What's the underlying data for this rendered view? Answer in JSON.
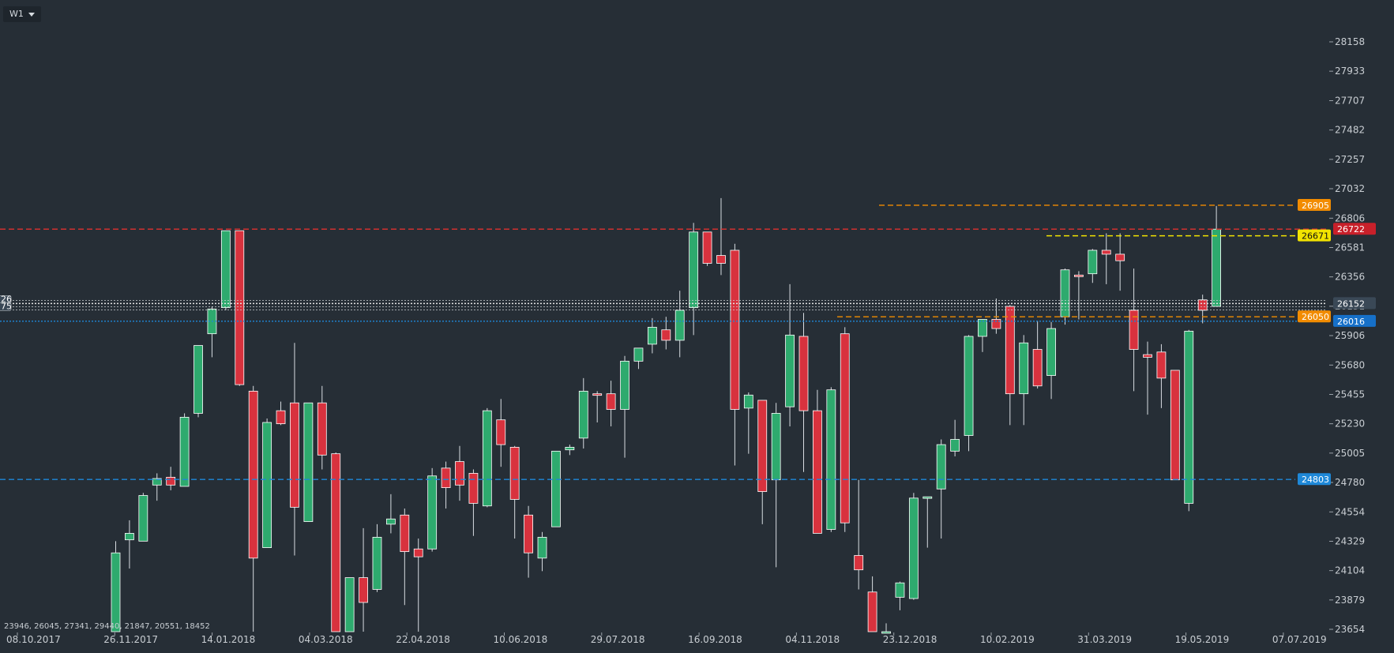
{
  "toolbar": {
    "timeframe": "W1"
  },
  "ohlc_readout": "23946, 26045, 27341, 29440, 21847, 20551, 18452",
  "colors": {
    "background": "#262e36",
    "bull": "#2eaa6e",
    "bear": "#d8323e",
    "axis_text": "#c9ced3",
    "orange": "#f28c00",
    "yellow": "#f2e300",
    "blue": "#1e88d8",
    "red": "#e03030"
  },
  "chart_data": {
    "type": "candlestick",
    "interval": "weekly",
    "x_tick_labels": [
      "08.10.2017",
      "26.11.2017",
      "14.01.2018",
      "04.03.2018",
      "22.04.2018",
      "10.06.2018",
      "29.07.2018",
      "16.09.2018",
      "04.11.2018",
      "23.12.2018",
      "10.02.2019",
      "31.03.2019",
      "19.05.2019",
      "07.07.2019"
    ],
    "y_tick_labels": [
      "28158",
      "27933",
      "27707",
      "27482",
      "27257",
      "27032",
      "26806",
      "26581",
      "26356",
      "26131",
      "25906",
      "25680",
      "25455",
      "25230",
      "25005",
      "24780",
      "24554",
      "24329",
      "24104",
      "23879",
      "23654"
    ],
    "ylim": [
      23654,
      28158
    ],
    "candles": [
      {
        "o": 23600,
        "h": 24330,
        "l": 23600,
        "c": 24240
      },
      {
        "o": 24340,
        "h": 24490,
        "l": 24120,
        "c": 24390
      },
      {
        "o": 24330,
        "h": 24700,
        "l": 24330,
        "c": 24680
      },
      {
        "o": 24760,
        "h": 24850,
        "l": 24640,
        "c": 24810
      },
      {
        "o": 24820,
        "h": 24900,
        "l": 24720,
        "c": 24760
      },
      {
        "o": 24750,
        "h": 25310,
        "l": 24750,
        "c": 25280
      },
      {
        "o": 25310,
        "h": 25820,
        "l": 25280,
        "c": 25830
      },
      {
        "o": 25920,
        "h": 26130,
        "l": 25740,
        "c": 26110
      },
      {
        "o": 26120,
        "h": 26710,
        "l": 26100,
        "c": 26710
      },
      {
        "o": 26710,
        "h": 26710,
        "l": 25520,
        "c": 25530
      },
      {
        "o": 25480,
        "h": 25520,
        "l": 23600,
        "c": 24200
      },
      {
        "o": 24280,
        "h": 25270,
        "l": 24280,
        "c": 25240
      },
      {
        "o": 25330,
        "h": 25400,
        "l": 25220,
        "c": 25230
      },
      {
        "o": 25390,
        "h": 25850,
        "l": 24220,
        "c": 24590
      },
      {
        "o": 24480,
        "h": 25390,
        "l": 24480,
        "c": 25390
      },
      {
        "o": 25390,
        "h": 25520,
        "l": 24880,
        "c": 24990
      },
      {
        "o": 25000,
        "h": 25010,
        "l": 23600,
        "c": 23600
      },
      {
        "o": 23600,
        "h": 24020,
        "l": 23600,
        "c": 24050
      },
      {
        "o": 24050,
        "h": 24430,
        "l": 23600,
        "c": 23860
      },
      {
        "o": 23960,
        "h": 24460,
        "l": 23940,
        "c": 24360
      },
      {
        "o": 24460,
        "h": 24690,
        "l": 24390,
        "c": 24500
      },
      {
        "o": 24530,
        "h": 24580,
        "l": 23840,
        "c": 24250
      },
      {
        "o": 24270,
        "h": 24350,
        "l": 23600,
        "c": 24210
      },
      {
        "o": 24270,
        "h": 24890,
        "l": 24250,
        "c": 24830
      },
      {
        "o": 24890,
        "h": 24940,
        "l": 24580,
        "c": 24740
      },
      {
        "o": 24940,
        "h": 25060,
        "l": 24640,
        "c": 24760
      },
      {
        "o": 24850,
        "h": 24880,
        "l": 24370,
        "c": 24620
      },
      {
        "o": 24600,
        "h": 25350,
        "l": 24590,
        "c": 25330
      },
      {
        "o": 25260,
        "h": 25420,
        "l": 24900,
        "c": 25070
      },
      {
        "o": 25050,
        "h": 25060,
        "l": 24350,
        "c": 24650
      },
      {
        "o": 24530,
        "h": 24600,
        "l": 24050,
        "c": 24240
      },
      {
        "o": 24200,
        "h": 24400,
        "l": 24100,
        "c": 24360
      },
      {
        "o": 24440,
        "h": 25020,
        "l": 24440,
        "c": 25020
      },
      {
        "o": 25030,
        "h": 25070,
        "l": 24990,
        "c": 25050
      },
      {
        "o": 25120,
        "h": 25580,
        "l": 25040,
        "c": 25480
      },
      {
        "o": 25460,
        "h": 25480,
        "l": 25240,
        "c": 25450
      },
      {
        "o": 25460,
        "h": 25560,
        "l": 25210,
        "c": 25340
      },
      {
        "o": 25340,
        "h": 25750,
        "l": 24970,
        "c": 25710
      },
      {
        "o": 25710,
        "h": 25810,
        "l": 25650,
        "c": 25810
      },
      {
        "o": 25840,
        "h": 26040,
        "l": 25770,
        "c": 25970
      },
      {
        "o": 25950,
        "h": 26050,
        "l": 25800,
        "c": 25870
      },
      {
        "o": 25870,
        "h": 26250,
        "l": 25740,
        "c": 26100
      },
      {
        "o": 26120,
        "h": 26770,
        "l": 25910,
        "c": 26700
      },
      {
        "o": 26700,
        "h": 26700,
        "l": 26440,
        "c": 26460
      },
      {
        "o": 26520,
        "h": 26960,
        "l": 26370,
        "c": 26460
      },
      {
        "o": 26560,
        "h": 26610,
        "l": 24910,
        "c": 25340
      },
      {
        "o": 25350,
        "h": 25470,
        "l": 25000,
        "c": 25450
      },
      {
        "o": 25410,
        "h": 25410,
        "l": 24460,
        "c": 24710
      },
      {
        "o": 24800,
        "h": 25390,
        "l": 24130,
        "c": 25310
      },
      {
        "o": 25360,
        "h": 26300,
        "l": 25210,
        "c": 25910
      },
      {
        "o": 25900,
        "h": 26080,
        "l": 24860,
        "c": 25330
      },
      {
        "o": 25330,
        "h": 25490,
        "l": 24390,
        "c": 24390
      },
      {
        "o": 24420,
        "h": 25510,
        "l": 24400,
        "c": 25490
      },
      {
        "o": 25920,
        "h": 25970,
        "l": 24400,
        "c": 24470
      },
      {
        "o": 24220,
        "h": 24800,
        "l": 23960,
        "c": 24110
      },
      {
        "o": 23940,
        "h": 24060,
        "l": 23600,
        "c": 23600
      },
      {
        "o": 23600,
        "h": 23700,
        "l": 23600,
        "c": 23600
      },
      {
        "o": 23900,
        "h": 24020,
        "l": 23800,
        "c": 24010
      },
      {
        "o": 23890,
        "h": 24700,
        "l": 23880,
        "c": 24660
      },
      {
        "o": 24660,
        "h": 24670,
        "l": 24280,
        "c": 24670
      },
      {
        "o": 24730,
        "h": 25110,
        "l": 24350,
        "c": 25070
      },
      {
        "o": 25020,
        "h": 25260,
        "l": 24980,
        "c": 25110
      },
      {
        "o": 25140,
        "h": 25910,
        "l": 25020,
        "c": 25900
      },
      {
        "o": 25900,
        "h": 26030,
        "l": 25780,
        "c": 26030
      },
      {
        "o": 26030,
        "h": 26190,
        "l": 25920,
        "c": 25960
      },
      {
        "o": 26130,
        "h": 26140,
        "l": 25220,
        "c": 25460
      },
      {
        "o": 25460,
        "h": 25910,
        "l": 25220,
        "c": 25850
      },
      {
        "o": 25800,
        "h": 26020,
        "l": 25500,
        "c": 25520
      },
      {
        "o": 25600,
        "h": 26010,
        "l": 25420,
        "c": 25960
      },
      {
        "o": 26050,
        "h": 26420,
        "l": 25990,
        "c": 26410
      },
      {
        "o": 26370,
        "h": 26400,
        "l": 26030,
        "c": 26360
      },
      {
        "o": 26380,
        "h": 26570,
        "l": 26310,
        "c": 26560
      },
      {
        "o": 26560,
        "h": 26690,
        "l": 26300,
        "c": 26530
      },
      {
        "o": 26530,
        "h": 26690,
        "l": 26250,
        "c": 26480
      },
      {
        "o": 26100,
        "h": 26420,
        "l": 25480,
        "c": 25800
      },
      {
        "o": 25760,
        "h": 25860,
        "l": 25300,
        "c": 25740
      },
      {
        "o": 25780,
        "h": 25840,
        "l": 25350,
        "c": 25580
      },
      {
        "o": 25640,
        "h": 25640,
        "l": 24800,
        "c": 24800
      },
      {
        "o": 24620,
        "h": 25950,
        "l": 24560,
        "c": 25940
      },
      {
        "o": 26180,
        "h": 26220,
        "l": 26000,
        "c": 26100
      },
      {
        "o": 26130,
        "h": 26900,
        "l": 26130,
        "c": 26722
      }
    ],
    "horizontal_lines": [
      {
        "value": 26905,
        "color": "orange",
        "style": "dashed",
        "label": "26905"
      },
      {
        "value": 26722,
        "color": "red",
        "style": "dashed",
        "label": "26722"
      },
      {
        "value": 26671,
        "color": "yellow",
        "style": "dashed",
        "label": "26671"
      },
      {
        "value": 26152,
        "color": "white",
        "style": "dotted",
        "label": "26152"
      },
      {
        "value": 26050,
        "color": "orange",
        "style": "dashed",
        "label": "26050"
      },
      {
        "value": 26016,
        "color": "blue",
        "style": "dotted",
        "label": "26016"
      },
      {
        "value": 24803,
        "color": "blue",
        "style": "dashed",
        "label": "24803"
      }
    ],
    "left_edge_tags": [
      "26",
      "75"
    ]
  }
}
